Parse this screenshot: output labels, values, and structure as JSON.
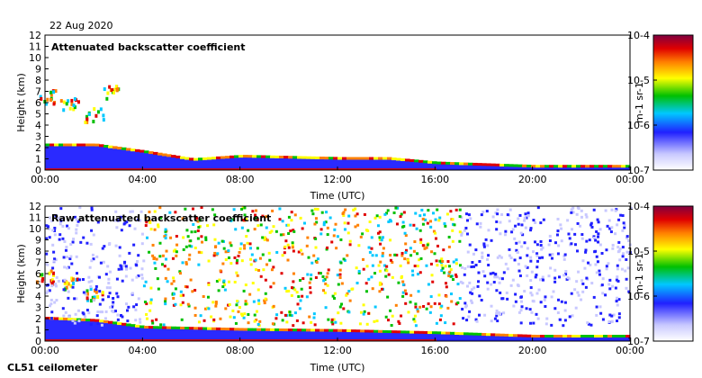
{
  "header": {
    "date": "22 Aug 2020"
  },
  "footer": {
    "instrument": "CL51 ceilometer"
  },
  "chart_data": [
    {
      "type": "heatmap",
      "title": "Attenuated backscatter coefficient",
      "xlabel": "Time (UTC)",
      "ylabel": "Height (km)",
      "xticks": [
        "00:00",
        "04:00",
        "08:00",
        "12:00",
        "16:00",
        "20:00",
        "00:00"
      ],
      "yticks": [
        "0",
        "1",
        "2",
        "3",
        "4",
        "5",
        "6",
        "7",
        "8",
        "9",
        "10",
        "11",
        "12"
      ],
      "xlim_hours": [
        0,
        24
      ],
      "ylim_km": [
        0,
        12
      ],
      "colorbar": {
        "label": "m-1 sr-1",
        "scale": "log",
        "min": "10-7",
        "ticks": [
          "10-7",
          "10-6",
          "10-5",
          "10-4"
        ],
        "max": "10-4"
      },
      "features": {
        "boundary_layer_top_km": [
          [
            0,
            2.2
          ],
          [
            2,
            2.2
          ],
          [
            4,
            1.6
          ],
          [
            6,
            0.9
          ],
          [
            8,
            1.2
          ],
          [
            10,
            1.1
          ],
          [
            12,
            1.0
          ],
          [
            14,
            1.0
          ],
          [
            16,
            0.6
          ],
          [
            20,
            0.3
          ],
          [
            24,
            0.3
          ]
        ],
        "cloud_layer_km": [
          [
            0,
            6.6
          ],
          [
            1,
            6.0
          ],
          [
            2,
            5.0
          ],
          [
            2.6,
            7.0
          ]
        ]
      }
    },
    {
      "type": "heatmap",
      "title": "Raw attenuated backscatter coefficient",
      "xlabel": "Time (UTC)",
      "ylabel": "Height (km)",
      "xticks": [
        "00:00",
        "04:00",
        "08:00",
        "12:00",
        "16:00",
        "20:00",
        "00:00"
      ],
      "yticks": [
        "0",
        "1",
        "2",
        "3",
        "4",
        "5",
        "6",
        "7",
        "8",
        "9",
        "10",
        "11",
        "12"
      ],
      "xlim_hours": [
        0,
        24
      ],
      "ylim_km": [
        0,
        12
      ],
      "colorbar": {
        "label": "m-1 sr-1",
        "scale": "log",
        "min": "10-7",
        "ticks": [
          "10-7",
          "10-6",
          "10-5",
          "10-4"
        ],
        "max": "10-4"
      },
      "features": {
        "high_noise_period_hours": [
          4,
          17
        ],
        "boundary_layer_top_km": [
          [
            0,
            2.0
          ],
          [
            2,
            1.8
          ],
          [
            4,
            1.2
          ],
          [
            8,
            1.0
          ],
          [
            12,
            0.9
          ],
          [
            16,
            0.7
          ],
          [
            20,
            0.4
          ],
          [
            24,
            0.4
          ]
        ],
        "cloud_layer_km": [
          [
            0,
            5.8
          ],
          [
            1,
            5.2
          ],
          [
            2,
            4.2
          ]
        ]
      }
    }
  ]
}
